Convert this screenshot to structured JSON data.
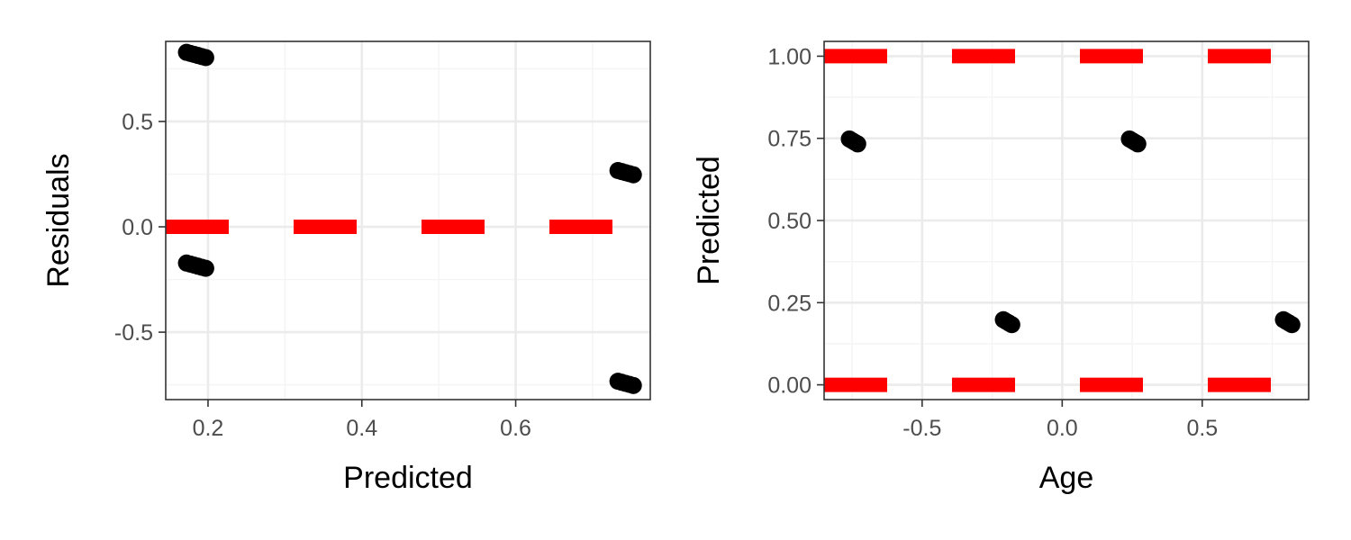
{
  "colors": {
    "points": "#000000",
    "reference_line": "#ff0000",
    "grid_major": "#ebebeb",
    "grid_minor": "#f4f4f4",
    "panel_border": "#333333",
    "tick_text": "#4d4d4d"
  },
  "chart_data": [
    {
      "type": "scatter",
      "title": "",
      "xlabel": "Predicted",
      "ylabel": "Residuals",
      "xlim": [
        0.145,
        0.775
      ],
      "ylim": [
        -0.82,
        0.88
      ],
      "xticks": [
        0.2,
        0.4,
        0.6
      ],
      "xtick_labels": [
        "0.2",
        "0.4",
        "0.6"
      ],
      "yticks": [
        -0.5,
        0.0,
        0.5
      ],
      "ytick_labels": [
        "-0.5",
        "0.0",
        "0.5"
      ],
      "grid": true,
      "reference_line": {
        "orientation": "horizontal",
        "value": 0.0,
        "style": "dashed"
      },
      "series": [
        {
          "points": [
            {
              "x": 0.172,
              "y": 0.828
            },
            {
              "x": 0.177,
              "y": 0.823
            },
            {
              "x": 0.182,
              "y": 0.818
            },
            {
              "x": 0.187,
              "y": 0.813
            },
            {
              "x": 0.192,
              "y": 0.808
            },
            {
              "x": 0.197,
              "y": 0.803
            },
            {
              "x": 0.172,
              "y": -0.172
            },
            {
              "x": 0.177,
              "y": -0.177
            },
            {
              "x": 0.182,
              "y": -0.182
            },
            {
              "x": 0.187,
              "y": -0.187
            },
            {
              "x": 0.192,
              "y": -0.192
            },
            {
              "x": 0.197,
              "y": -0.197
            },
            {
              "x": 0.733,
              "y": 0.267
            },
            {
              "x": 0.738,
              "y": 0.262
            },
            {
              "x": 0.743,
              "y": 0.257
            },
            {
              "x": 0.748,
              "y": 0.252
            },
            {
              "x": 0.753,
              "y": 0.247
            },
            {
              "x": 0.733,
              "y": -0.733
            },
            {
              "x": 0.738,
              "y": -0.738
            },
            {
              "x": 0.743,
              "y": -0.743
            },
            {
              "x": 0.748,
              "y": -0.748
            },
            {
              "x": 0.753,
              "y": -0.753
            }
          ]
        }
      ]
    },
    {
      "type": "scatter",
      "title": "",
      "xlabel": "Age",
      "ylabel": "Predicted",
      "xlim": [
        -0.85,
        0.88
      ],
      "ylim": [
        -0.045,
        1.045
      ],
      "xticks": [
        -0.5,
        0.0,
        0.5
      ],
      "xtick_labels": [
        "-0.5",
        "0.0",
        "0.5"
      ],
      "yticks": [
        0.0,
        0.25,
        0.5,
        0.75,
        1.0
      ],
      "ytick_labels": [
        "0.00",
        "0.25",
        "0.50",
        "0.75",
        "1.00"
      ],
      "grid": true,
      "reference_lines": [
        {
          "orientation": "horizontal",
          "value": 0.0,
          "style": "dashed"
        },
        {
          "orientation": "horizontal",
          "value": 1.0,
          "style": "dashed"
        }
      ],
      "series": [
        {
          "points": [
            {
              "x": -0.76,
              "y": 0.748
            },
            {
              "x": -0.75,
              "y": 0.743
            },
            {
              "x": -0.74,
              "y": 0.738
            },
            {
              "x": -0.73,
              "y": 0.733
            },
            {
              "x": -0.21,
              "y": 0.198
            },
            {
              "x": -0.2,
              "y": 0.193
            },
            {
              "x": -0.19,
              "y": 0.188
            },
            {
              "x": -0.18,
              "y": 0.183
            },
            {
              "x": 0.24,
              "y": 0.748
            },
            {
              "x": 0.25,
              "y": 0.743
            },
            {
              "x": 0.26,
              "y": 0.738
            },
            {
              "x": 0.27,
              "y": 0.733
            },
            {
              "x": 0.79,
              "y": 0.198
            },
            {
              "x": 0.8,
              "y": 0.193
            },
            {
              "x": 0.81,
              "y": 0.188
            },
            {
              "x": 0.82,
              "y": 0.183
            }
          ]
        }
      ]
    }
  ]
}
